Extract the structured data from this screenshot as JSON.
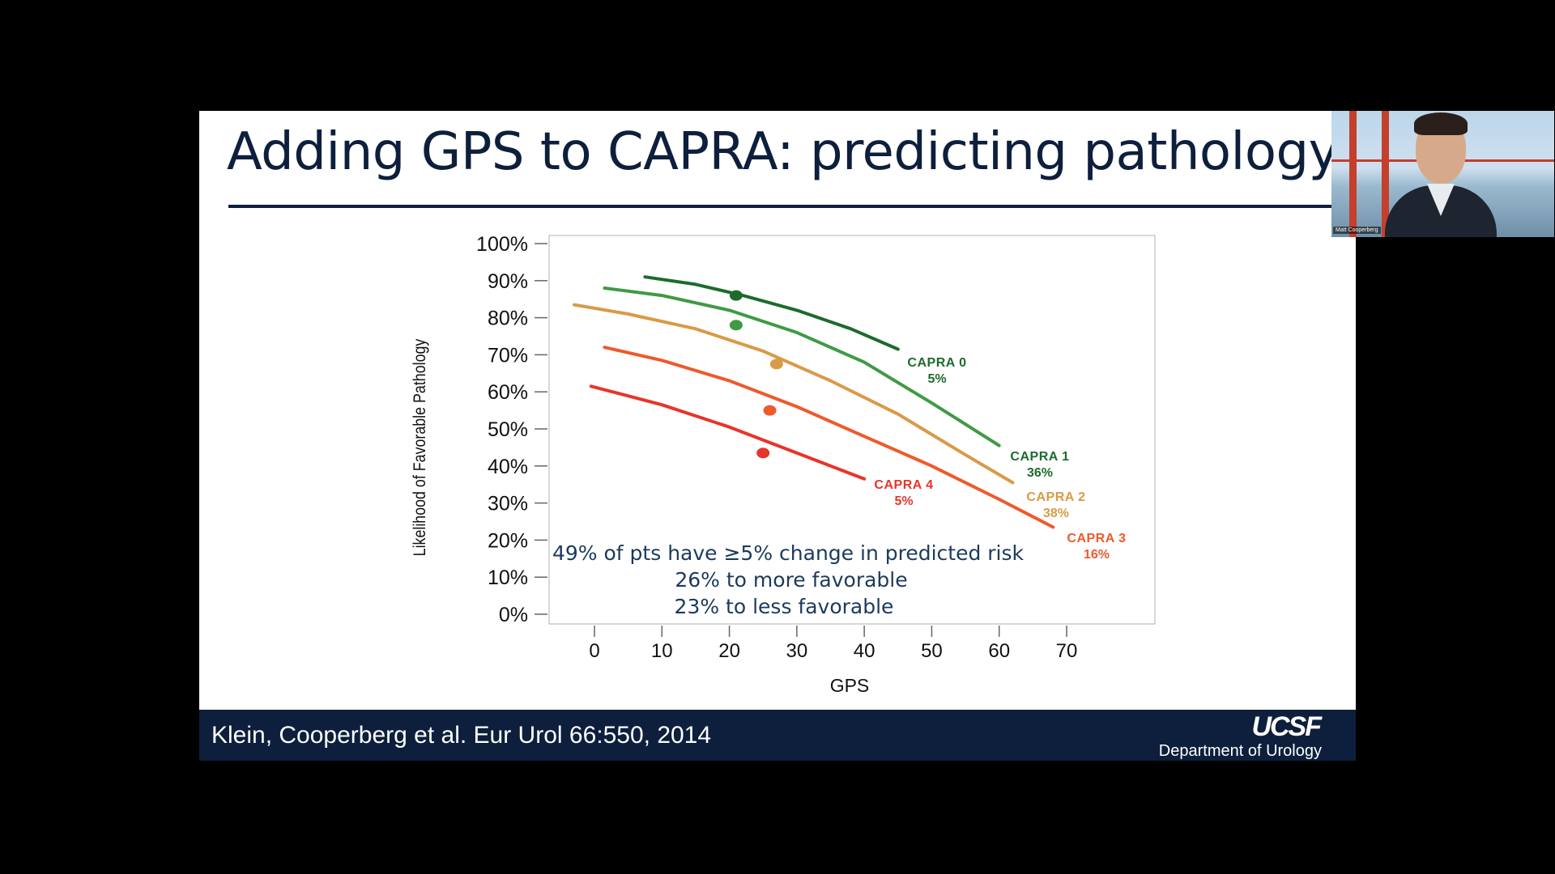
{
  "slide": {
    "title": "Adding GPS to CAPRA: predicting pathology",
    "citation": "Klein, Cooperberg et al. Eur Urol 66:550, 2014",
    "logo_text": "UCSF",
    "department": "Department of Urology"
  },
  "webcam": {
    "participant_name": "Matt Cooperberg"
  },
  "colors": {
    "background": "#000000",
    "slide_background": "#ffffff",
    "navy": "#0d1f3c"
  },
  "chart_data": {
    "type": "line",
    "title": "",
    "xlabel": "GPS",
    "ylabel": "Likelihood of Favorable Pathology",
    "xlim": [
      -7,
      83
    ],
    "ylim": [
      0,
      100
    ],
    "x_ticks": [
      0,
      10,
      20,
      30,
      40,
      50,
      60,
      70
    ],
    "y_ticks": [
      0,
      10,
      20,
      30,
      40,
      50,
      60,
      70,
      80,
      90,
      100
    ],
    "y_tick_labels": [
      "0%",
      "10%",
      "20%",
      "30%",
      "40%",
      "50%",
      "60%",
      "70%",
      "80%",
      "90%",
      "100%"
    ],
    "grid": false,
    "series": [
      {
        "name": "CAPRA 0",
        "percent": "5%",
        "color": "#1d6b2c",
        "label_color": "#1d6b2c",
        "x": [
          7.5,
          15,
          22,
          30,
          38,
          45
        ],
        "y": [
          91,
          89,
          86,
          82,
          77,
          71.5
        ],
        "point": [
          21,
          86
        ]
      },
      {
        "name": "CAPRA 1",
        "percent": "36%",
        "color": "#3f9a45",
        "label_color": "#1d6b2c",
        "x": [
          1.5,
          10,
          20,
          30,
          40,
          50,
          60
        ],
        "y": [
          88,
          86,
          82,
          76,
          68,
          57,
          45.5
        ],
        "point": [
          21,
          78
        ]
      },
      {
        "name": "CAPRA 2",
        "percent": "38%",
        "color": "#d99a47",
        "label_color": "#d99a47",
        "x": [
          -3,
          5,
          15,
          25,
          35,
          45,
          55,
          62
        ],
        "y": [
          83.5,
          81,
          77,
          71,
          63,
          54,
          43,
          35.5
        ],
        "point": [
          27,
          67.5
        ]
      },
      {
        "name": "CAPRA 3",
        "percent": "16%",
        "color": "#ee5a2c",
        "label_color": "#ee5a2c",
        "x": [
          1.5,
          10,
          20,
          30,
          40,
          50,
          60,
          68
        ],
        "y": [
          72,
          68.5,
          63,
          56,
          48,
          40,
          31,
          23.5
        ],
        "point": [
          26,
          55
        ]
      },
      {
        "name": "CAPRA 4",
        "percent": "5%",
        "color": "#e7352a",
        "label_color": "#e7352a",
        "x": [
          -0.5,
          10,
          20,
          30,
          40
        ],
        "y": [
          61.5,
          56.5,
          50.5,
          43.5,
          36.5
        ],
        "point": [
          25,
          43.5
        ]
      }
    ],
    "annotations": [
      "49% of pts have ≥5% change in predicted risk",
      "26% to more favorable",
      "23% to less favorable"
    ]
  }
}
